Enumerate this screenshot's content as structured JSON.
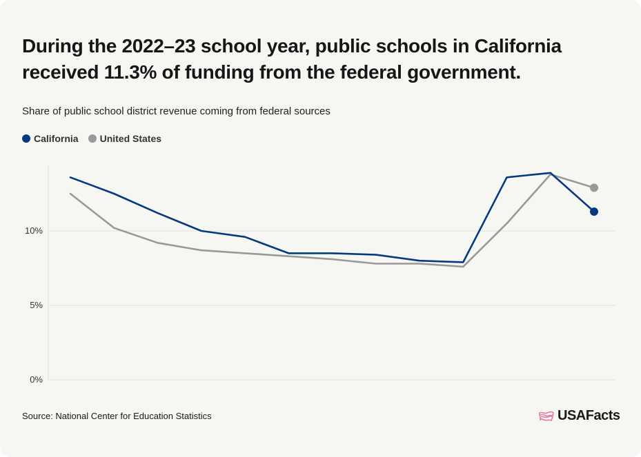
{
  "header": {
    "headline": "During the 2022–23 school year, public schools in California received 11.3% of funding from the federal government.",
    "subtitle": "Share of public school district revenue coming from federal sources"
  },
  "footer": {
    "source": "Source: National Center for Education Statistics",
    "brand": "USAFacts",
    "brand_icon": "us-map-flag-icon"
  },
  "colors": {
    "california": "#063a7f",
    "united_states": "#999999",
    "grid": "#e3e3e0",
    "axis_text": "#333333",
    "brand_mark": "#e07aa8"
  },
  "chart_data": {
    "type": "line",
    "title": "",
    "xlabel": "",
    "ylabel": "",
    "ylim": [
      0,
      14.4
    ],
    "yticks": [
      {
        "value": 0,
        "label": "0%"
      },
      {
        "value": 5,
        "label": "5%"
      },
      {
        "value": 10,
        "label": "10%"
      }
    ],
    "grid": true,
    "legend_position": "top-left",
    "x": [
      0,
      1,
      2,
      3,
      4,
      5,
      6,
      7,
      8,
      9,
      10,
      11,
      12
    ],
    "series": [
      {
        "name": "California",
        "color": "#063a7f",
        "values": [
          13.6,
          12.5,
          11.2,
          10.0,
          9.6,
          8.5,
          8.5,
          8.4,
          8.0,
          7.9,
          13.6,
          13.9,
          11.3
        ],
        "end_marker": true
      },
      {
        "name": "United States",
        "color": "#999999",
        "values": [
          12.5,
          10.2,
          9.2,
          8.7,
          8.5,
          8.3,
          8.1,
          7.8,
          7.8,
          7.6,
          10.5,
          13.8,
          12.9
        ],
        "end_marker": true
      }
    ]
  }
}
